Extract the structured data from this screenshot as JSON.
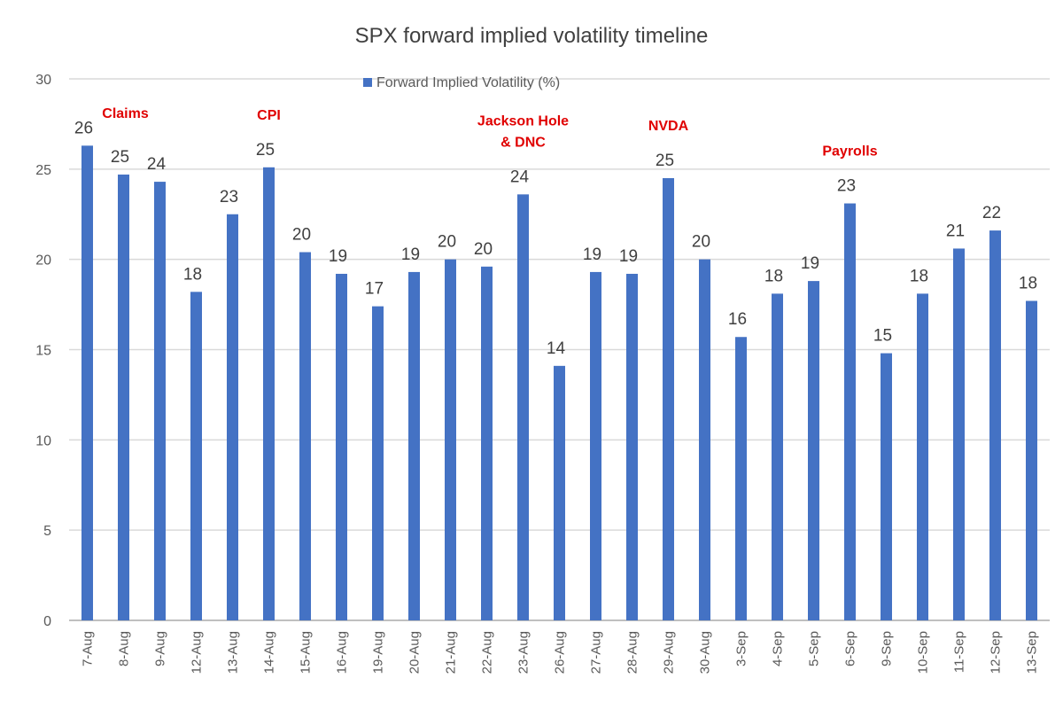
{
  "chart_data": {
    "type": "bar",
    "title": "SPX forward implied volatility timeline",
    "xlabel": "",
    "ylabel": "",
    "ylim": [
      0,
      30
    ],
    "yticks": [
      0,
      5,
      10,
      15,
      20,
      25,
      30
    ],
    "grid": true,
    "legend_placement": "top-center",
    "colors": {
      "bar": "#4472c4",
      "grid": "#d9d9d9",
      "annotation": "#e00000"
    },
    "categories": [
      "7-Aug",
      "8-Aug",
      "9-Aug",
      "12-Aug",
      "13-Aug",
      "14-Aug",
      "15-Aug",
      "16-Aug",
      "19-Aug",
      "20-Aug",
      "21-Aug",
      "22-Aug",
      "23-Aug",
      "26-Aug",
      "27-Aug",
      "28-Aug",
      "29-Aug",
      "30-Aug",
      "3-Sep",
      "4-Sep",
      "5-Sep",
      "6-Sep",
      "9-Sep",
      "10-Sep",
      "11-Sep",
      "12-Sep",
      "13-Sep"
    ],
    "series": [
      {
        "name": "Forward Implied Volatility (%)",
        "values": [
          26.3,
          24.7,
          24.3,
          18.2,
          22.5,
          25.1,
          20.4,
          19.2,
          17.4,
          19.3,
          20.0,
          19.6,
          23.6,
          14.1,
          19.3,
          19.2,
          24.5,
          20.0,
          15.7,
          18.1,
          18.8,
          23.1,
          14.8,
          18.1,
          20.6,
          21.6,
          17.7
        ],
        "data_labels": [
          "26",
          "25",
          "24",
          "18",
          "23",
          "25",
          "20",
          "19",
          "17",
          "19",
          "20",
          "20",
          "24",
          "14",
          "19",
          "19",
          "25",
          "20",
          "16",
          "18",
          "19",
          "23",
          "15",
          "18",
          "21",
          "22",
          "18"
        ]
      }
    ],
    "annotations": [
      {
        "category": "8-Aug",
        "lines": [
          "Claims"
        ]
      },
      {
        "category": "14-Aug",
        "lines": [
          "CPI"
        ]
      },
      {
        "category": "23-Aug",
        "lines": [
          "Jackson Hole",
          "& DNC"
        ]
      },
      {
        "category": "29-Aug",
        "lines": [
          "NVDA"
        ]
      },
      {
        "category": "6-Sep",
        "lines": [
          "Payrolls"
        ]
      }
    ]
  }
}
